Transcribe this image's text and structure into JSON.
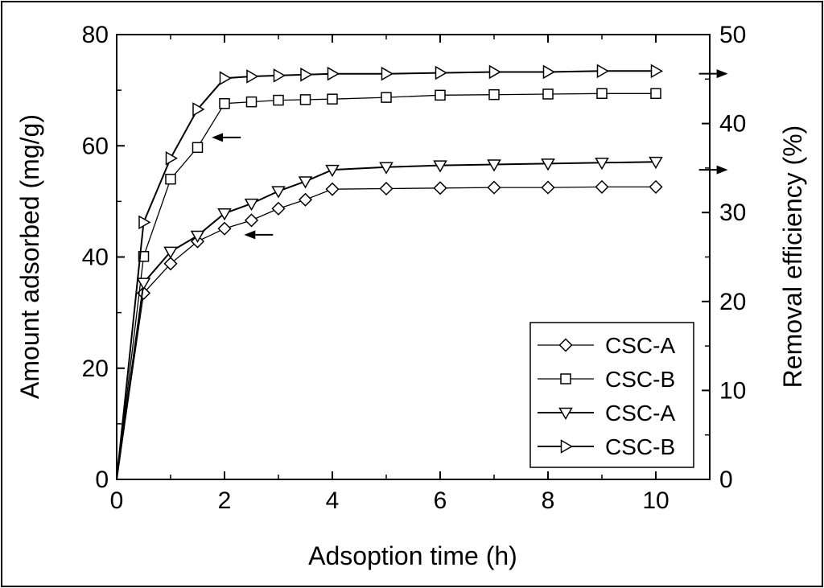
{
  "chart_data": {
    "type": "line",
    "xlabel": "Adsoption time (h)",
    "ylabel_left": "Amount adsorbed (mg/g)",
    "ylabel_right": "Removal efficiency (%)",
    "xlim": [
      0,
      11
    ],
    "ylim_left": [
      0,
      80
    ],
    "ylim_right": [
      0,
      50
    ],
    "x_ticks": [
      0,
      2,
      4,
      6,
      8,
      10
    ],
    "y_ticks_left": [
      0,
      20,
      40,
      60,
      80
    ],
    "y_ticks_right": [
      0,
      10,
      20,
      30,
      40,
      50
    ],
    "grid": false,
    "legend_position": "bottom-right",
    "series": [
      {
        "name": "CSC-A",
        "axis": "left",
        "marker": "diamond",
        "x": [
          0,
          0.5,
          1,
          1.5,
          2,
          2.5,
          3,
          3.5,
          4,
          5,
          6,
          7,
          8,
          9,
          10
        ],
        "values": [
          0,
          33.5,
          38.8,
          42.8,
          45.1,
          46.6,
          48.7,
          50.3,
          52.2,
          52.3,
          52.4,
          52.5,
          52.5,
          52.6,
          52.6
        ]
      },
      {
        "name": "CSC-B",
        "axis": "left",
        "marker": "square",
        "x": [
          0,
          0.5,
          1,
          1.5,
          2,
          2.5,
          3,
          3.5,
          4,
          5,
          6,
          7,
          8,
          9,
          10
        ],
        "values": [
          0,
          40.1,
          54.0,
          59.7,
          67.6,
          67.9,
          68.2,
          68.3,
          68.4,
          68.7,
          69.1,
          69.2,
          69.3,
          69.4,
          69.4
        ]
      },
      {
        "name": "CSC-A",
        "axis": "right",
        "marker": "triangle-down",
        "x": [
          0,
          0.5,
          1,
          1.5,
          2,
          2.5,
          3,
          3.5,
          4,
          5,
          6,
          7,
          8,
          9,
          10
        ],
        "values": [
          0,
          22.1,
          25.6,
          27.4,
          29.9,
          31.0,
          32.4,
          33.5,
          34.8,
          35.1,
          35.3,
          35.4,
          35.5,
          35.6,
          35.7
        ]
      },
      {
        "name": "CSC-B",
        "axis": "right",
        "marker": "triangle-right",
        "x": [
          0,
          0.5,
          1,
          1.5,
          2,
          2.5,
          3,
          3.5,
          4,
          5,
          6,
          7,
          8,
          9,
          10
        ],
        "values": [
          0,
          28.9,
          36.1,
          41.6,
          45.1,
          45.3,
          45.4,
          45.5,
          45.6,
          45.6,
          45.7,
          45.8,
          45.8,
          45.9,
          45.9
        ]
      }
    ],
    "annotations": [
      {
        "type": "arrow",
        "direction": "left",
        "x": 2.3,
        "y": 61.5,
        "axis": "left"
      },
      {
        "type": "arrow",
        "direction": "left",
        "x": 2.9,
        "y": 44.0,
        "axis": "left"
      },
      {
        "type": "arrow",
        "direction": "right",
        "x": 10.8,
        "y": 45.6,
        "axis": "right"
      },
      {
        "type": "arrow",
        "direction": "right",
        "x": 10.8,
        "y": 34.8,
        "axis": "right"
      }
    ]
  }
}
